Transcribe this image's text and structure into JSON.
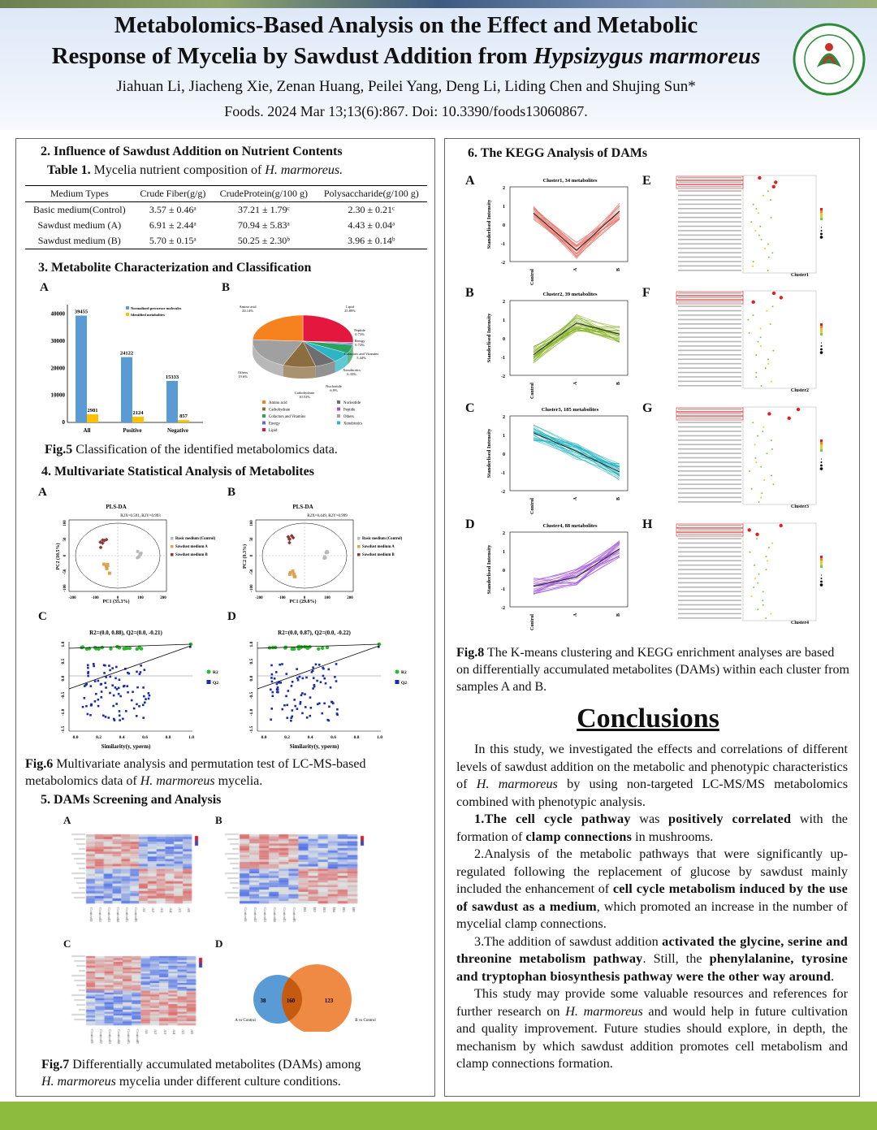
{
  "header": {
    "title_line1": "Metabolomics-Based Analysis on the Effect and Metabolic",
    "title_line2_prefix": "Response of Mycelia by Sawdust Addition from ",
    "title_line2_species": "Hypsizygus marmoreus",
    "authors": "Jiahuan Li, Jiacheng Xie, Zenan Huang, Peilei Yang, Deng Li, Liding Chen and Shujing Sun*",
    "citation": "Foods. 2024 Mar 13;13(6):867. Doi: 10.3390/foods13060867."
  },
  "section2": {
    "heading": "2. Influence of Sawdust Addition on Nutrient Contents",
    "table_title_prefix": "Table 1. ",
    "table_title_text": "Mycelia nutrient composition of ",
    "table_title_species": "H. marmoreus.",
    "columns": [
      "Medium Types",
      "Crude Fiber(g/g)",
      "CrudeProtein(g/100 g)",
      "Polysaccharide(g/100 g)"
    ],
    "rows": [
      [
        "Basic medium(Control)",
        "3.57 ± 0.46ᵃ",
        "37.21 ± 1.79ᶜ",
        "2.30 ± 0.21ᶜ"
      ],
      [
        "Sawdust medium (A)",
        "6.91 ± 2.44ᵃ",
        "70.94 ± 5.83ᵃ",
        "4.43 ± 0.04ᵃ"
      ],
      [
        "Sawdust medium (B)",
        "5.70 ± 0.15ᵃ",
        "50.25 ± 2.30ᵇ",
        "3.96 ± 0.14ᵇ"
      ]
    ]
  },
  "section3": {
    "heading": "3. Metabolite Characterization and Classification",
    "label_a": "A",
    "label_b": "B",
    "bar_chart": {
      "legend": [
        "Normalized precursor molecules",
        "Identified metabolites"
      ],
      "categories": [
        "All",
        "Positive",
        "Negative"
      ],
      "values_precursor": [
        39455,
        24122,
        15333
      ],
      "values_identified": [
        2981,
        2124,
        857
      ],
      "yticks": [
        "0",
        "10000",
        "20000",
        "30000",
        "40000"
      ]
    },
    "pie_labels": [
      "Amino acid\n24.14%",
      "Lipid\n25.89%",
      "Peptide\n0.73%",
      "Energy\n0.73%",
      "Cofactors and Vitamins\n5.44%",
      "Xenobiotics\n6.35%",
      "Nucleotide\n6.9%",
      "Carbohydrate\n10.53%",
      "Others\n19.6%"
    ],
    "pie_legend": [
      "Amino acid",
      "Carbohydrate",
      "Cofactors and Vitamins",
      "Energy",
      "Lipid",
      "Nucleotide",
      "Peptide",
      "Others",
      "Xenobiotics"
    ],
    "caption_prefix": "Fig.5",
    "caption_text": " Classification of the identified metabolomics data."
  },
  "section4": {
    "heading": "4. Multivariate Statistical Analysis of Metabolites",
    "labels": [
      "A",
      "B",
      "C",
      "D"
    ],
    "plsda_a": {
      "title": "PLS-DA",
      "subtitle": "R2X=0.591,  R2Y=0.993",
      "xlabel": "PC1  (35.3%)",
      "ylabel": "PC2  (10.5%)"
    },
    "plsda_b": {
      "title": "PLS-DA",
      "subtitle": "R2X=0.449,  R2Y=0.999",
      "xlabel": "PC1  (29.8%)",
      "ylabel": "PC2  (9.3%)"
    },
    "plsda_legend": [
      "Basic medium (Control)",
      "Sawdust medium A",
      "Sawdust medium B"
    ],
    "perm_c": {
      "title": "R2=(0.0, 0.88), Q2=(0.0, -0.21)"
    },
    "perm_d": {
      "title": "R2=(0.0, 0.87), Q2=(0.0, -0.22)"
    },
    "perm_xlabel": "Similarity(y, yperm)",
    "perm_legend": [
      "R2",
      "Q2"
    ],
    "caption_prefix": "Fig.6",
    "caption_text1": " Multivariate analysis and permutation test of LC-MS-based",
    "caption_text2": "metabolomics data of ",
    "caption_species": "H. marmoreus",
    "caption_text3": " mycelia."
  },
  "section5": {
    "heading": "5. DAMs Screening and Analysis",
    "labels": [
      "A",
      "B",
      "C",
      "D"
    ],
    "venn": {
      "left": "38",
      "middle": "160",
      "right": "123",
      "label_left": "A vs Control",
      "label_right": "B vs Control"
    },
    "caption_prefix": "Fig.7",
    "caption_text1": " Differentially accumulated metabolites (DAMs) among",
    "caption_species": "H. marmoreus",
    "caption_text2": " mycelia under different culture conditions."
  },
  "section6": {
    "heading": "6. The KEGG Analysis of DAMs",
    "clusters": [
      {
        "label": "A",
        "title": "Cluster1, 34 metabolites",
        "kegg_label": "E",
        "kegg_cluster": "Cluster1"
      },
      {
        "label": "B",
        "title": "Cluster2, 39 metabolites",
        "kegg_label": "F",
        "kegg_cluster": "Cluster2"
      },
      {
        "label": "C",
        "title": "Cluster3, 185 metabolites",
        "kegg_label": "G",
        "kegg_cluster": "Cluster3"
      },
      {
        "label": "D",
        "title": "Cluster4, 88 metabolites",
        "kegg_label": "H",
        "kegg_cluster": "Cluster4"
      }
    ],
    "ylabel": "Standerlised Intensity",
    "xcats": [
      "Control",
      "A",
      "B"
    ],
    "caption_prefix": "Fig.8",
    "caption_text": " The K-means clustering and KEGG enrichment analyses are based on differentially accumulated metabolites (DAMs) within each cluster from samples A and B."
  },
  "conclusions": {
    "title": "Conclusions",
    "p0a": "In this study, we investigated the effects and correlations of different levels of sawdust addition on the metabolic and phenotypic characteristics of ",
    "p0s": "H. marmoreus",
    "p0b": " by using non-targeted LC-MS/MS metabolomics combined with phenotypic analysis.",
    "p1a": "1.The ",
    "p1b": "cell cycle pathway",
    "p1c": " was ",
    "p1d": "positively correlated",
    "p1e": " with the formation of ",
    "p1f": "clamp connections",
    "p1g": " in mushrooms.",
    "p2a": "2.Analysis of the metabolic pathways that were significantly up-regulated following the replacement of glucose by sawdust mainly included the enhancement of ",
    "p2b": "cell cycle metabolism induced by the use of sawdust as a medium",
    "p2c": ", which promoted an increase in the number of mycelial clamp connections.",
    "p3a": "3.The addition of sawdust addition ",
    "p3b": "activated the glycine, serine and threonine metabolism pathway",
    "p3c": ". Still, the ",
    "p3d": "phenylalanine, tyrosine and tryptophan biosynthesis pathway were the other way around",
    "p3e": ".",
    "p4a": "This study may provide some valuable resources and references for further research on ",
    "p4s": "H. marmoreus",
    "p4b": " and would help in future cultivation and quality improvement. Future studies should explore, in depth, the mechanism by which sawdust addition promotes cell metabolism and clamp connections formation."
  },
  "colors": {
    "header_bg": "#dce7f7",
    "footer": "#8dbb3e",
    "bar_blue": "#5b9bd5",
    "bar_yellow": "#ffc000"
  }
}
